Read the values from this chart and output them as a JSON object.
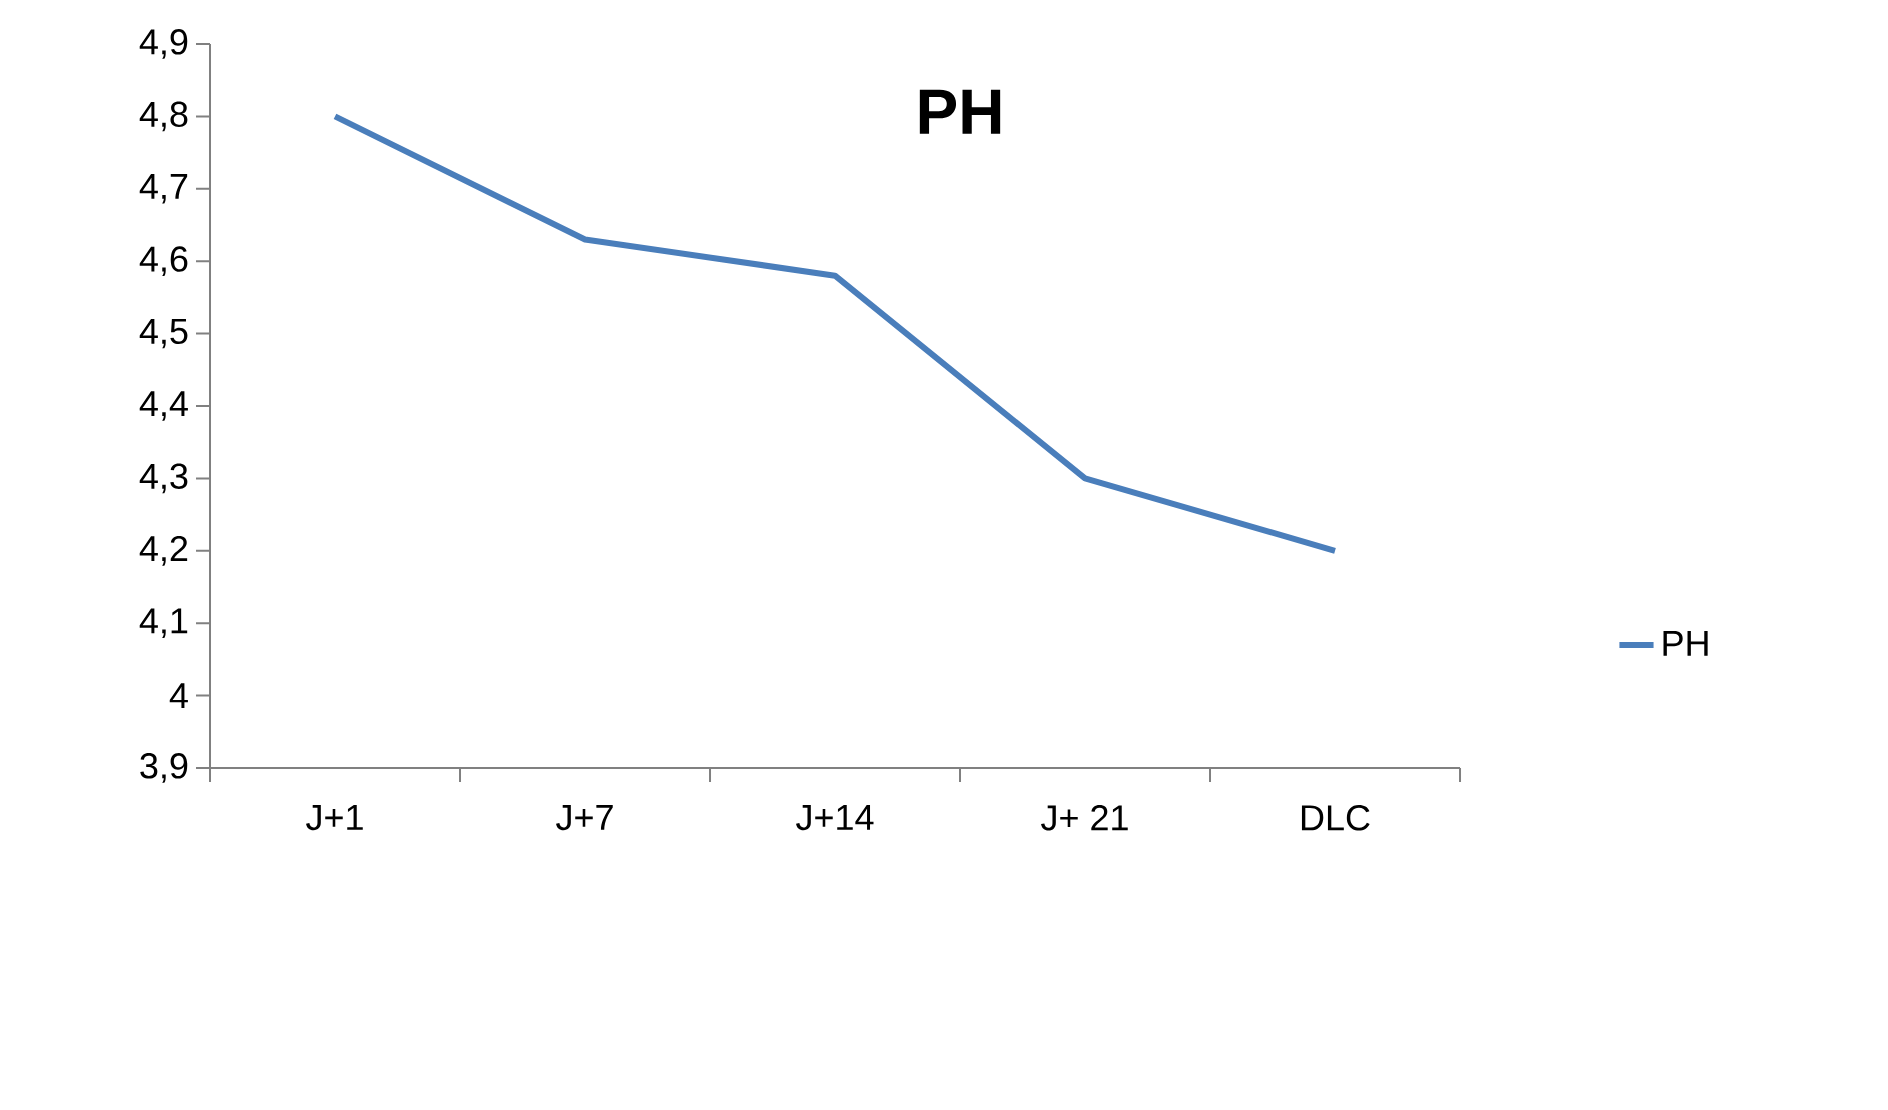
{
  "chart_data": {
    "type": "line",
    "title": "PH",
    "categories": [
      "J+1",
      "J+7",
      "J+14",
      "J+ 21",
      "DLC"
    ],
    "series": [
      {
        "name": "PH",
        "color": "#4a7ebb",
        "values": [
          4.8,
          4.63,
          4.58,
          4.3,
          4.2
        ]
      }
    ],
    "ylim": [
      3.9,
      4.9
    ],
    "yticks": [
      {
        "value": 3.9,
        "label": "3,9"
      },
      4,
      {
        "value": 4.1,
        "label": "4,1"
      },
      {
        "value": 4.2,
        "label": "4,2"
      },
      {
        "value": 4.3,
        "label": "4,3"
      },
      {
        "value": 4.4,
        "label": "4,4"
      },
      {
        "value": 4.5,
        "label": "4,5"
      },
      {
        "value": 4.6,
        "label": "4,6"
      },
      {
        "value": 4.7,
        "label": "4,7"
      },
      {
        "value": 4.8,
        "label": "4,8"
      },
      {
        "value": 4.9,
        "label": "4,9"
      }
    ],
    "grid": false,
    "legend": "right",
    "marker": "none",
    "line_style": "solid"
  }
}
